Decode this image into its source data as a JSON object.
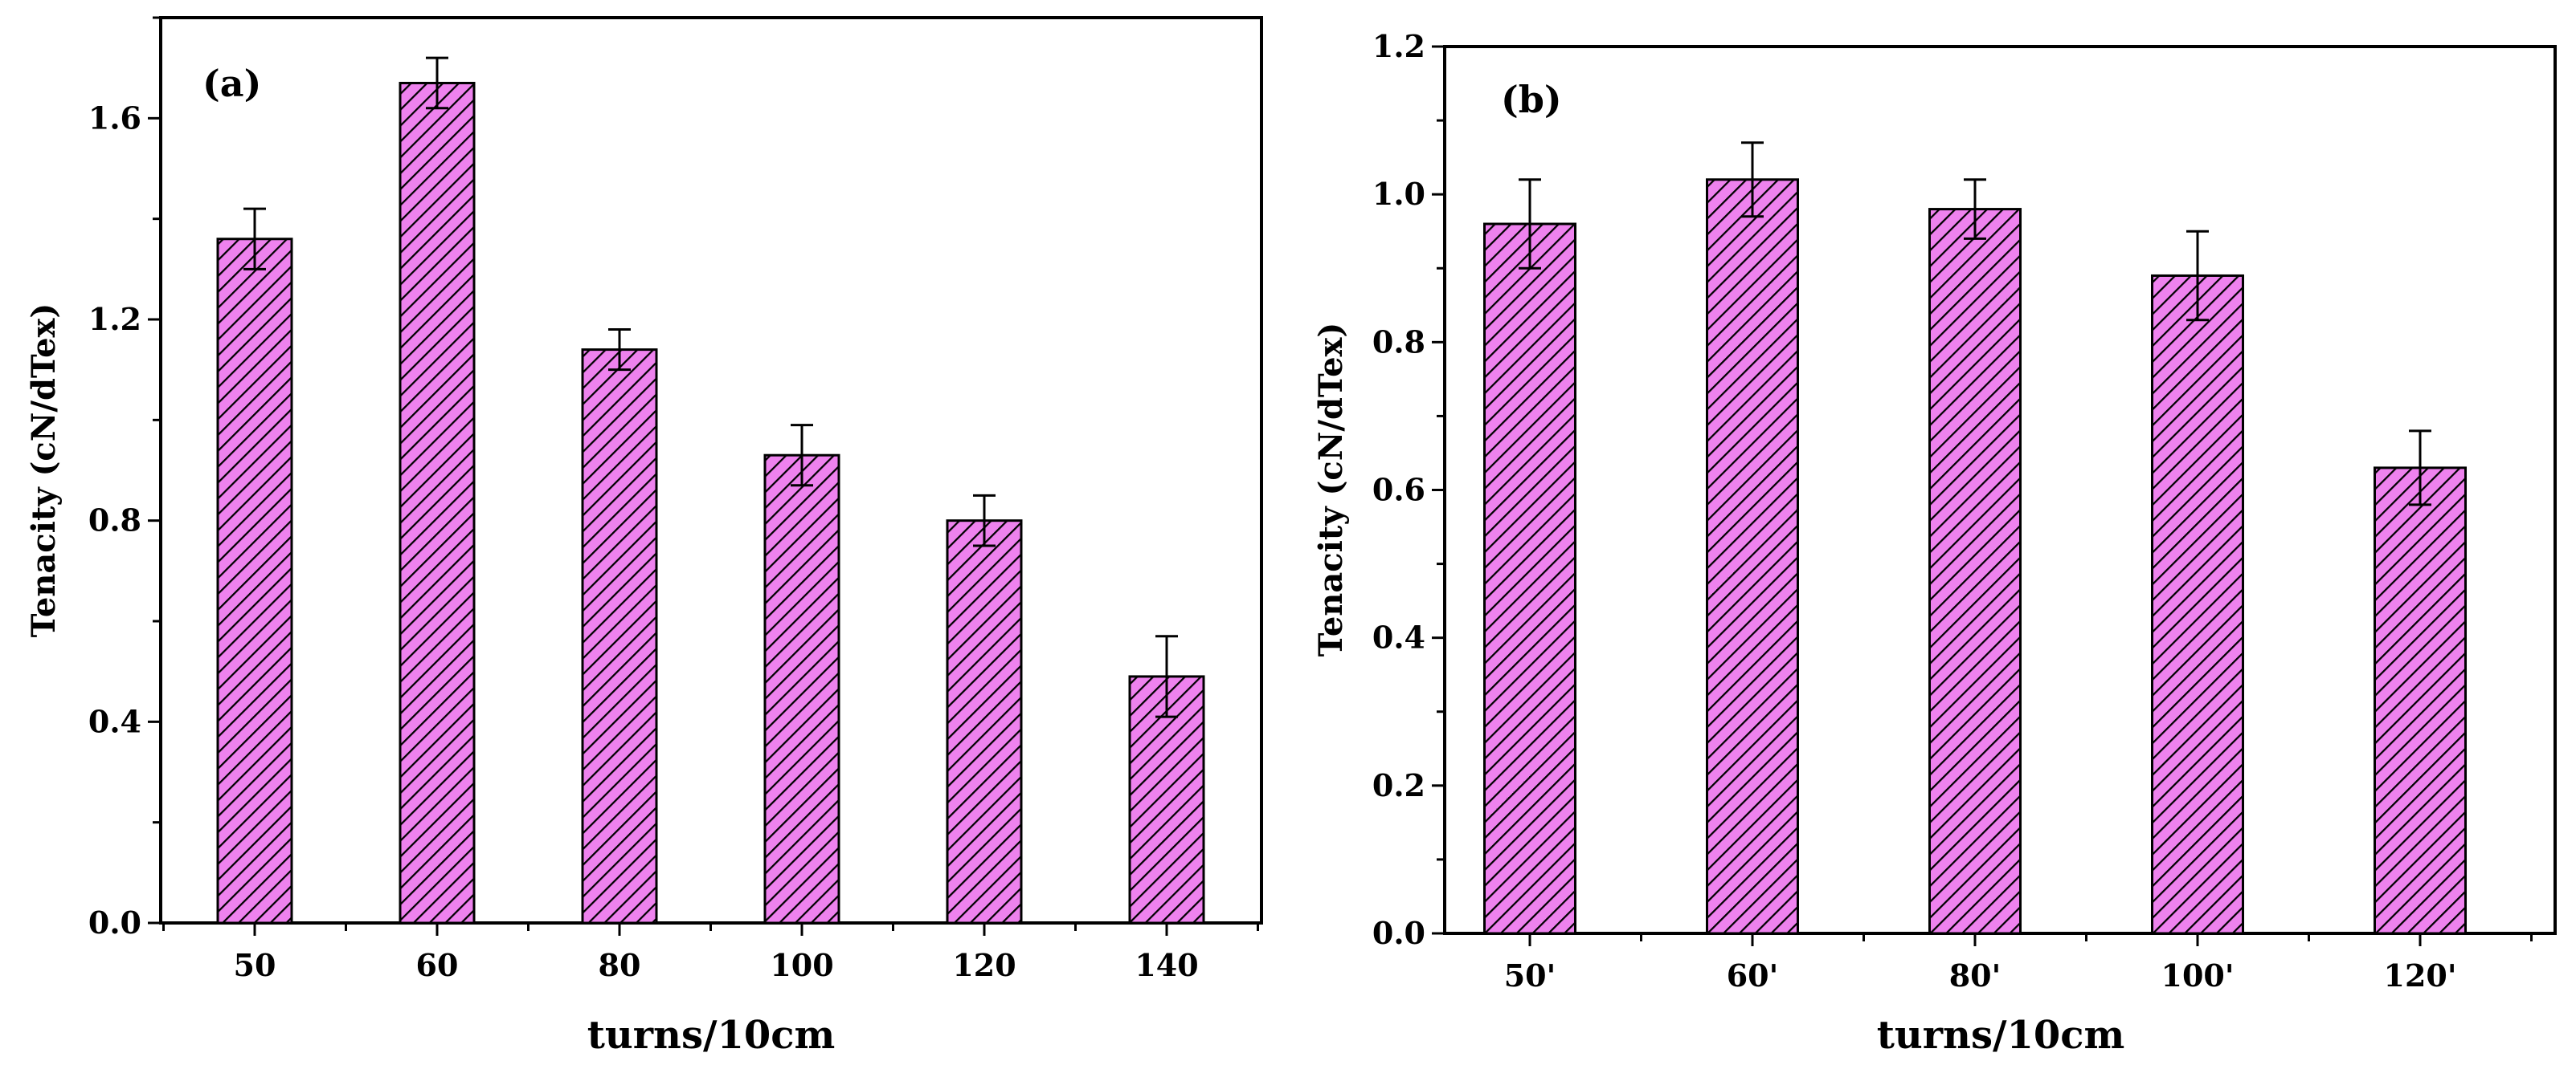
{
  "chart_data": [
    {
      "type": "bar",
      "panel_label": "(a)",
      "title": "",
      "xlabel": "turns/10cm",
      "ylabel": "Tenacity (cN/dTex)",
      "categories": [
        "50",
        "60",
        "80",
        "100",
        "120",
        "140"
      ],
      "values": [
        1.36,
        1.67,
        1.14,
        0.93,
        0.8,
        0.49
      ],
      "errors": [
        0.06,
        0.05,
        0.04,
        0.06,
        0.05,
        0.08
      ],
      "ylim": [
        0,
        1.8
      ],
      "yticks": [
        "0.0",
        "0.4",
        "0.8",
        "1.2",
        "1.6"
      ],
      "ytick_values": [
        0,
        0.4,
        0.8,
        1.2,
        1.6
      ],
      "bar_color": "#ee82ee",
      "hatch_color": "#000000",
      "legend": "none"
    },
    {
      "type": "bar",
      "panel_label": "(b)",
      "title": "",
      "xlabel": "turns/10cm",
      "ylabel": "Tenacity (cN/dTex)",
      "categories": [
        "50'",
        "60'",
        "80'",
        "100'",
        "120'"
      ],
      "values": [
        0.96,
        1.02,
        0.98,
        0.89,
        0.63
      ],
      "errors": [
        0.06,
        0.05,
        0.04,
        0.06,
        0.05
      ],
      "ylim": [
        0,
        1.2
      ],
      "yticks": [
        "0.0",
        "0.2",
        "0.4",
        "0.6",
        "0.8",
        "1.0",
        "1.2"
      ],
      "ytick_values": [
        0,
        0.2,
        0.4,
        0.6,
        0.8,
        1.0,
        1.2
      ],
      "bar_color": "#ee82ee",
      "hatch_color": "#000000",
      "legend": "none"
    }
  ]
}
